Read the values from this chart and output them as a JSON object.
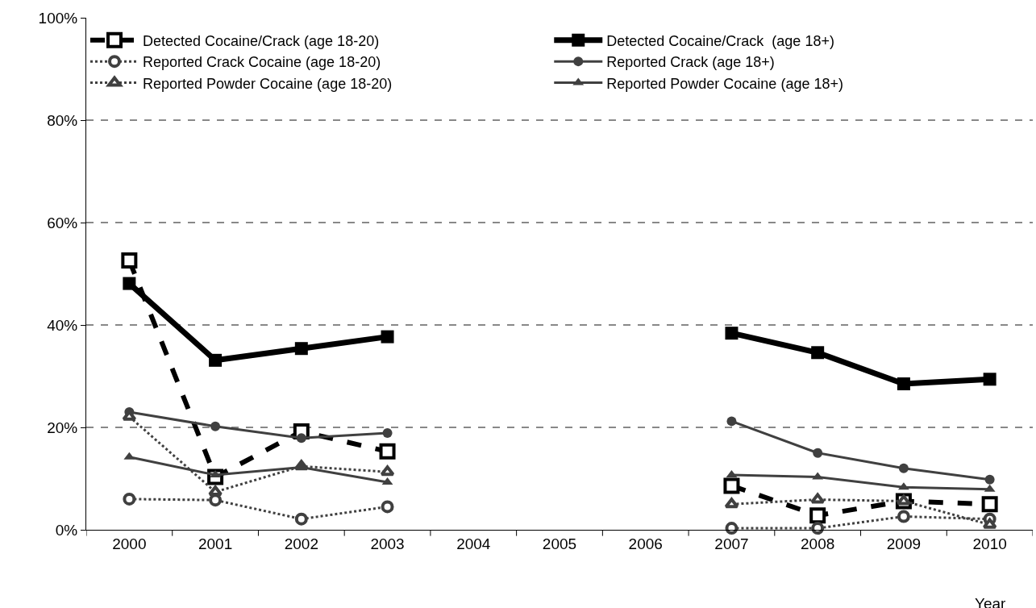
{
  "chart_data": {
    "type": "line",
    "xlabel": "Year",
    "categories": [
      "2000",
      "2001",
      "2002",
      "2003",
      "2004",
      "2005",
      "2006",
      "2007",
      "2008",
      "2009",
      "2010"
    ],
    "ylim": [
      0,
      100
    ],
    "yticks": [
      {
        "value": 0,
        "label": "0%"
      },
      {
        "value": 20,
        "label": "20%"
      },
      {
        "value": 40,
        "label": "40%"
      },
      {
        "value": 60,
        "label": "60%"
      },
      {
        "value": 80,
        "label": "80%"
      },
      {
        "value": 100,
        "label": "100%"
      }
    ],
    "grid": "y",
    "legend": "top",
    "series": [
      {
        "name": "Detected Cocaine/Crack (age 18-20)",
        "color": "#000000",
        "marker": "square",
        "line_style": "dashed",
        "values": [
          52.6,
          10.3,
          19.2,
          15.3,
          null,
          null,
          null,
          8.6,
          2.8,
          5.6,
          5.0
        ]
      },
      {
        "name": "Detected Cocaine/Crack  (age 18+)",
        "color": "#000000",
        "marker": "square",
        "line_style": "solid",
        "values": [
          48.1,
          33.1,
          35.4,
          37.7,
          null,
          null,
          null,
          38.4,
          34.6,
          28.5,
          29.4
        ]
      },
      {
        "name": "Reported Crack Cocaine (age 18-20)",
        "color": "#404040",
        "marker": "circle",
        "line_style": "dotted",
        "values": [
          6.0,
          5.8,
          2.1,
          4.5,
          null,
          null,
          null,
          0.3,
          0.3,
          2.6,
          2.1
        ]
      },
      {
        "name": "Reported Crack (age 18+)",
        "color": "#404040",
        "marker": "circle",
        "line_style": "solid",
        "values": [
          23.0,
          20.2,
          17.9,
          18.9,
          null,
          null,
          null,
          21.2,
          15.0,
          12.0,
          9.8
        ]
      },
      {
        "name": "Reported Powder Cocaine (age 18-20)",
        "color": "#404040",
        "marker": "triangle",
        "line_style": "dotted",
        "values": [
          22.1,
          7.4,
          12.4,
          11.3,
          null,
          null,
          null,
          5.0,
          5.9,
          5.6,
          1.0
        ]
      },
      {
        "name": "Reported Powder Cocaine (age 18+)",
        "color": "#404040",
        "marker": "triangle",
        "line_style": "solid",
        "values": [
          14.2,
          10.7,
          12.2,
          9.3,
          null,
          null,
          null,
          10.7,
          10.3,
          8.3,
          7.9
        ]
      }
    ]
  }
}
